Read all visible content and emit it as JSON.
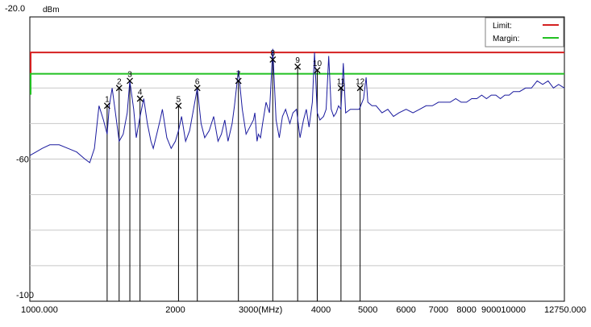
{
  "chart_data": {
    "type": "line",
    "title": "",
    "xlabel": "",
    "ylabel": "",
    "y_unit_label": "dBm",
    "x_scale": "log",
    "xlim": [
      1000,
      12750
    ],
    "ylim": [
      -100,
      -20
    ],
    "y_ticks": [
      {
        "value": -20,
        "label": "-20.0"
      },
      {
        "value": -60,
        "label": "-60"
      },
      {
        "value": -100,
        "label": "-100"
      }
    ],
    "x_ticks": [
      {
        "value": 1000,
        "label": "1000.000"
      },
      {
        "value": 2000,
        "label": "2000"
      },
      {
        "value": 3000,
        "label": "3000(MHz)"
      },
      {
        "value": 4000,
        "label": "4000"
      },
      {
        "value": 5000,
        "label": "5000"
      },
      {
        "value": 6000,
        "label": "6000"
      },
      {
        "value": 7000,
        "label": "7000"
      },
      {
        "value": 8000,
        "label": "8000"
      },
      {
        "value": 9000,
        "label": "9000"
      },
      {
        "value": 10000,
        "label": "10000"
      },
      {
        "value": 12750,
        "label": "12750.000"
      }
    ],
    "grid": true,
    "legend_position": "top-right",
    "limit": {
      "name": "Limit:",
      "value": -30,
      "color": "#d42020"
    },
    "margin": {
      "name": "Margin:",
      "value": -36,
      "color": "#22c022"
    },
    "trace_color": "#1a1a9e",
    "series": [
      {
        "x": [
          1000,
          1030,
          1060,
          1100,
          1150,
          1200,
          1250,
          1300,
          1330,
          1360,
          1390,
          1420,
          1445,
          1460,
          1480,
          1500,
          1530,
          1560,
          1590,
          1610,
          1640,
          1660,
          1690,
          1720,
          1750,
          1780,
          1800,
          1830,
          1860,
          1880,
          1920,
          1960,
          2000,
          2030,
          2060,
          2100,
          2140,
          2180,
          2220,
          2260,
          2300,
          2350,
          2400,
          2450,
          2490,
          2530,
          2570,
          2620,
          2650,
          2700,
          2750,
          2800,
          2850,
          2900,
          2920,
          2950,
          2970,
          3000,
          3030,
          3080,
          3130,
          3180,
          3230,
          3280,
          3330,
          3380,
          3450,
          3500,
          3560,
          3620,
          3680,
          3730,
          3780,
          3840,
          3880,
          3930,
          3980,
          4050,
          4100,
          4150,
          4200,
          4250,
          4300,
          4350,
          4400,
          4450,
          4500,
          4600,
          4700,
          4800,
          4900,
          4960,
          5000,
          5100,
          5200,
          5350,
          5500,
          5650,
          5800,
          6000,
          6200,
          6400,
          6600,
          6800,
          7000,
          7200,
          7400,
          7600,
          7800,
          8000,
          8200,
          8400,
          8600,
          8800,
          9000,
          9200,
          9400,
          9600,
          9800,
          10000,
          10300,
          10600,
          10900,
          11200,
          11500,
          11800,
          12100,
          12400,
          12750
        ],
        "y": [
          -59,
          -58,
          -57,
          -56,
          -56,
          -57,
          -58,
          -60,
          -61,
          -57,
          -45,
          -49,
          -53,
          -45,
          -40,
          -46,
          -55,
          -53,
          -47,
          -38,
          -46,
          -54,
          -48,
          -43,
          -50,
          -55,
          -57,
          -53,
          -49,
          -46,
          -54,
          -57,
          -55,
          -52,
          -48,
          -55,
          -52,
          -46,
          -40,
          -50,
          -54,
          -52,
          -48,
          -55,
          -53,
          -49,
          -55,
          -50,
          -45,
          -35,
          -46,
          -53,
          -51,
          -49,
          -47,
          -55,
          -53,
          -54,
          -50,
          -44,
          -47,
          -29,
          -49,
          -54,
          -48,
          -46,
          -50,
          -47,
          -46,
          -54,
          -49,
          -46,
          -51,
          -44,
          -30,
          -47,
          -49,
          -48,
          -46,
          -31,
          -46,
          -48,
          -47,
          -45,
          -46,
          -33,
          -47,
          -46,
          -46,
          -46,
          -43,
          -37,
          -44,
          -45,
          -45,
          -47,
          -46,
          -48,
          -47,
          -46,
          -47,
          -46,
          -45,
          -45,
          -44,
          -44,
          -44,
          -43,
          -44,
          -44,
          -43,
          -43,
          -42,
          -43,
          -42,
          -42,
          -43,
          -42,
          -42,
          -41,
          -41,
          -40,
          -40,
          -38,
          -39,
          -38,
          -40,
          -39,
          -40
        ]
      }
    ],
    "markers": [
      {
        "label": "1",
        "x": 1445,
        "y": -45
      },
      {
        "label": "2",
        "x": 1530,
        "y": -40
      },
      {
        "label": "3",
        "x": 1610,
        "y": -38
      },
      {
        "label": "4",
        "x": 1690,
        "y": -43
      },
      {
        "label": "5",
        "x": 2030,
        "y": -45
      },
      {
        "label": "6",
        "x": 2220,
        "y": -40
      },
      {
        "label": "7",
        "x": 2700,
        "y": -38
      },
      {
        "label": "8",
        "x": 3180,
        "y": -32
      },
      {
        "label": "9",
        "x": 3580,
        "y": -34
      },
      {
        "label": "10",
        "x": 3930,
        "y": -35
      },
      {
        "label": "11",
        "x": 4400,
        "y": -40
      },
      {
        "label": "12",
        "x": 4820,
        "y": -40
      }
    ]
  }
}
